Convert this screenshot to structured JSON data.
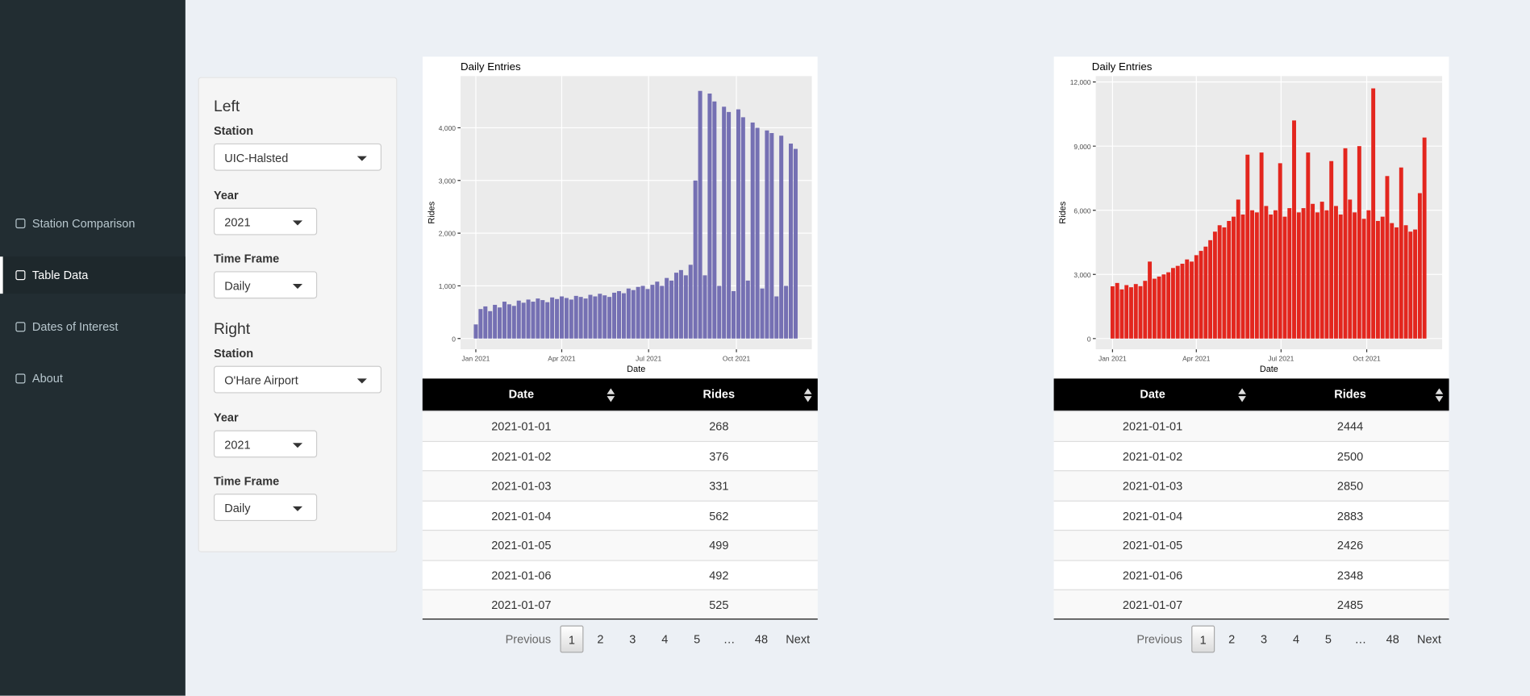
{
  "sidebar": {
    "menu": [
      "Station Comparison",
      "Table Data",
      "Dates of Interest",
      "About"
    ]
  },
  "controls": [
    {
      "heading": "Left",
      "station_label": "Station",
      "station": "UIC-Halsted",
      "year_label": "Year",
      "year": "2021",
      "timeframe_label": "Time Frame",
      "timeframe": "Daily"
    },
    {
      "heading": "Right",
      "station_label": "Station",
      "station": "O'Hare Airport",
      "year_label": "Year",
      "year": "2021",
      "timeframe_label": "Time Frame",
      "timeframe": "Daily"
    }
  ],
  "chart_data": [
    {
      "type": "bar",
      "title": "Daily Entries",
      "x_label": "Date",
      "y_label": "Rides",
      "color": "#7570b3",
      "grid": true,
      "x": [
        1,
        6,
        11,
        16,
        21,
        26,
        31,
        36,
        41,
        46,
        51,
        56,
        61,
        66,
        71,
        76,
        81,
        86,
        91,
        96,
        101,
        106,
        111,
        116,
        121,
        126,
        131,
        136,
        141,
        146,
        151,
        156,
        161,
        166,
        171,
        176,
        181,
        186,
        191,
        196,
        201,
        206,
        211,
        216,
        221,
        226,
        231,
        236,
        241,
        246,
        251,
        256,
        261,
        266,
        271,
        276,
        281,
        286,
        291,
        296,
        301,
        306,
        311,
        316,
        321,
        326,
        331,
        336
      ],
      "values": [
        268,
        560,
        610,
        520,
        640,
        590,
        700,
        650,
        620,
        720,
        680,
        740,
        700,
        760,
        730,
        690,
        780,
        750,
        800,
        770,
        740,
        810,
        790,
        760,
        830,
        800,
        850,
        820,
        790,
        870,
        900,
        860,
        950,
        920,
        980,
        1000,
        940,
        1020,
        1080,
        1000,
        1150,
        1100,
        1250,
        1300,
        1200,
        1400,
        3000,
        4700,
        1200,
        4650,
        4500,
        1000,
        4400,
        4300,
        900,
        4350,
        4200,
        1100,
        4100,
        4000,
        950,
        3950,
        3900,
        800,
        3850,
        1000,
        3700,
        3600
      ],
      "xlim": [
        -15,
        353
      ],
      "xticks": [
        {
          "value": 1,
          "label": "Jan 2021"
        },
        {
          "value": 91,
          "label": "Apr 2021"
        },
        {
          "value": 182,
          "label": "Jul 2021"
        },
        {
          "value": 274,
          "label": "Oct 2021"
        }
      ],
      "ylim": [
        -204,
        4981
      ],
      "yticks": [
        0,
        {
          "value": 1000,
          "label": "1,000"
        },
        {
          "value": 2000,
          "label": "2,000"
        },
        {
          "value": 3000,
          "label": "3,000"
        },
        {
          "value": 4000,
          "label": "4,000"
        }
      ]
    },
    {
      "type": "bar",
      "title": "Daily Entries",
      "x_label": "Date",
      "y_label": "Rides",
      "color": "#e3261e",
      "grid": true,
      "x": [
        1,
        6,
        11,
        16,
        21,
        26,
        31,
        36,
        41,
        46,
        51,
        56,
        61,
        66,
        71,
        76,
        81,
        86,
        91,
        96,
        101,
        106,
        111,
        116,
        121,
        126,
        131,
        136,
        141,
        146,
        151,
        156,
        161,
        166,
        171,
        176,
        181,
        186,
        191,
        196,
        201,
        206,
        211,
        216,
        221,
        226,
        231,
        236,
        241,
        246,
        251,
        256,
        261,
        266,
        271,
        276,
        281,
        286,
        291,
        296,
        301,
        306,
        311,
        316,
        321,
        326,
        331,
        336
      ],
      "values": [
        2444,
        2600,
        2300,
        2500,
        2400,
        2550,
        2450,
        2700,
        3600,
        2800,
        2900,
        3000,
        3100,
        3300,
        3400,
        3500,
        3700,
        3600,
        3900,
        4100,
        4300,
        4600,
        5000,
        5300,
        5200,
        5500,
        5700,
        6500,
        5800,
        8600,
        6000,
        5900,
        8700,
        6200,
        5800,
        6000,
        8200,
        5700,
        6100,
        10200,
        5900,
        6100,
        8700,
        6300,
        5900,
        6400,
        6000,
        8300,
        6200,
        5800,
        8900,
        6500,
        5900,
        9000,
        5600,
        6000,
        11700,
        5500,
        5700,
        7600,
        5400,
        5200,
        8000,
        5300,
        5000,
        5100,
        6800,
        9400
      ],
      "xlim": [
        -17,
        355
      ],
      "xticks": [
        {
          "value": 1,
          "label": "Jan 2021"
        },
        {
          "value": 91,
          "label": "Apr 2021"
        },
        {
          "value": 182,
          "label": "Jul 2021"
        },
        {
          "value": 274,
          "label": "Oct 2021"
        }
      ],
      "ylim": [
        -502,
        12274
      ],
      "yticks": [
        0,
        {
          "value": 3000,
          "label": "3,000"
        },
        {
          "value": 6000,
          "label": "6,000"
        },
        {
          "value": 9000,
          "label": "9,000"
        },
        {
          "value": 12000,
          "label": "12,000"
        }
      ]
    }
  ],
  "tables": [
    {
      "columns": [
        "Date",
        "Rides"
      ],
      "rows": [
        [
          "2021-01-01",
          268
        ],
        [
          "2021-01-02",
          376
        ],
        [
          "2021-01-03",
          331
        ],
        [
          "2021-01-04",
          562
        ],
        [
          "2021-01-05",
          499
        ],
        [
          "2021-01-06",
          492
        ],
        [
          "2021-01-07",
          525
        ]
      ],
      "pagination": [
        "Previous",
        1,
        2,
        3,
        4,
        5,
        "…",
        48,
        "Next"
      ]
    },
    {
      "columns": [
        "Date",
        "Rides"
      ],
      "rows": [
        [
          "2021-01-01",
          2444
        ],
        [
          "2021-01-02",
          2500
        ],
        [
          "2021-01-03",
          2850
        ],
        [
          "2021-01-04",
          2883
        ],
        [
          "2021-01-05",
          2426
        ],
        [
          "2021-01-06",
          2348
        ],
        [
          "2021-01-07",
          2485
        ]
      ],
      "pagination": [
        "Previous",
        1,
        2,
        3,
        4,
        5,
        "…",
        48,
        "Next"
      ]
    }
  ]
}
